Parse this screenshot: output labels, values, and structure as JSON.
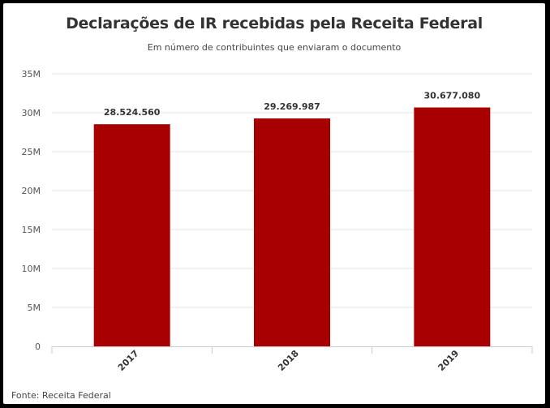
{
  "chart_data": {
    "type": "bar",
    "title": "Declarações de IR recebidas pela Receita Federal",
    "subtitle": "Em número de contribuintes que enviaram o documento",
    "source": "Fonte: Receita Federal",
    "categories": [
      "2017",
      "2018",
      "2019"
    ],
    "values": [
      28524560,
      29269987,
      30677080
    ],
    "data_labels": [
      "28.524.560",
      "29.269.987",
      "30.677.080"
    ],
    "y_ticks": [
      0,
      5000000,
      10000000,
      15000000,
      20000000,
      25000000,
      30000000,
      35000000
    ],
    "y_tick_labels": [
      "0",
      "5M",
      "10M",
      "15M",
      "20M",
      "25M",
      "30M",
      "35M"
    ],
    "ylim": [
      0,
      35000000
    ],
    "grid": true,
    "legend": "none",
    "bar_color": "#a80000",
    "grid_color": "#e6e6e6",
    "axis_color": "#cccccc"
  }
}
